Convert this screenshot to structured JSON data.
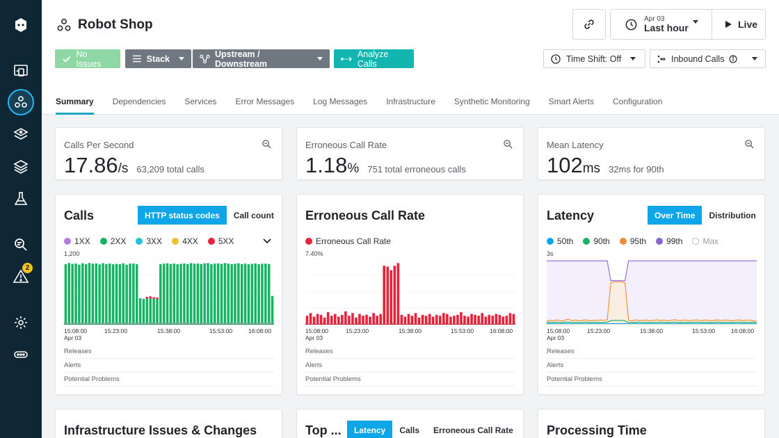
{
  "sidebar": {
    "icons": [
      "app-logo-icon",
      "websites-icon",
      "applications-icon",
      "platforms-icon",
      "infrastructure-icon",
      "tests-icon",
      "analyze-icon",
      "events-icon",
      "settings-icon",
      "more-icon"
    ],
    "events_badge": "2"
  },
  "header": {
    "title": "Robot Shop",
    "time_date": "Apr 03",
    "time_range": "Last hour",
    "live_label": "Live"
  },
  "toolbar": {
    "no_issues": "No Issues",
    "stack": "Stack",
    "upstream": "Upstream / Downstream",
    "analyze": "Analyze Calls",
    "time_shift": "Time Shift: Off",
    "inbound": "Inbound Calls"
  },
  "tabs": [
    "Summary",
    "Dependencies",
    "Services",
    "Error Messages",
    "Log Messages",
    "Infrastructure",
    "Synthetic Monitoring",
    "Smart Alerts",
    "Configuration"
  ],
  "stats": {
    "calls": {
      "label": "Calls Per Second",
      "value": "17.86",
      "unit": "/s",
      "sub": "63,209 total calls"
    },
    "errors": {
      "label": "Erroneous Call Rate",
      "value": "1.18",
      "unit": "%",
      "sub": "751 total erroneous calls"
    },
    "latency": {
      "label": "Mean Latency",
      "value": "102",
      "unit": "ms",
      "sub": "32ms for 90th"
    }
  },
  "calls_chart": {
    "title": "Calls",
    "toggle": [
      "HTTP status codes",
      "Call count"
    ],
    "legend": [
      "1XX",
      "2XX",
      "3XX",
      "4XX",
      "5XX"
    ],
    "ymax": "1,200",
    "xticks": [
      "15:08:00",
      "15:23:00",
      "15:38:00",
      "15:53:00",
      "16:08:00"
    ],
    "xdate": "Apr 03"
  },
  "error_chart": {
    "title": "Erroneous Call Rate",
    "legend": [
      "Erroneous Call Rate"
    ],
    "ymax": "7.40%",
    "xticks": [
      "15:08:00",
      "15:23:00",
      "15:38:00",
      "15:53:00",
      "16:08:00"
    ],
    "xdate": "Apr 03"
  },
  "latency_chart": {
    "title": "Latency",
    "toggle": [
      "Over Time",
      "Distribution"
    ],
    "legend": [
      "50th",
      "90th",
      "95th",
      "99th",
      "Max"
    ],
    "ymax": "3s",
    "xticks": [
      "15:08:00",
      "15:23:00",
      "15:38:00",
      "15:53:00",
      "16:08:00"
    ],
    "xdate": "Apr 03"
  },
  "rows": [
    "Releases",
    "Alerts",
    "Potential Problems"
  ],
  "bottom": {
    "infra_title": "Infrastructure Issues & Changes",
    "top_title": "Top ...",
    "top_tabs": [
      "Latency",
      "Calls",
      "Erroneous Call Rate"
    ],
    "processing_title": "Processing Time"
  },
  "colors": {
    "1XX": "#b57be3",
    "2XX": "#16b364",
    "3XX": "#22c3d6",
    "4XX": "#f2c037",
    "5XX": "#e5243b",
    "p50": "#0ea5e9",
    "p90": "#16b364",
    "p95": "#f08c2e",
    "p99": "#8a63d2"
  },
  "chart_data": [
    {
      "type": "bar",
      "title": "Calls",
      "ylim": [
        0,
        1200
      ],
      "x_start": "15:08:00",
      "x_end": "16:08:00",
      "series": [
        {
          "name": "2XX",
          "values": [
            1100,
            1120,
            1105,
            1110,
            1090,
            1115,
            1100,
            1120,
            1108,
            1112,
            1095,
            1118,
            1102,
            1110,
            1098,
            1105,
            1100,
            1115,
            1090,
            1108,
            1110,
            1100,
            480,
            470,
            475,
            480,
            470,
            465,
            1100,
            1108,
            1115,
            1102,
            1110,
            1098,
            1105,
            1112,
            1100,
            1118,
            1108,
            1110,
            1102,
            1115,
            1120,
            1100,
            1108,
            1112,
            1105,
            1118,
            1110,
            1100,
            1108,
            1115,
            1102,
            1110,
            1098,
            1105,
            1112,
            1100,
            1108,
            1110,
            1102,
            520
          ]
        },
        {
          "name": "5XX",
          "values": [
            0,
            0,
            0,
            0,
            0,
            0,
            0,
            0,
            0,
            0,
            0,
            0,
            0,
            0,
            0,
            0,
            0,
            0,
            0,
            0,
            0,
            0,
            0,
            0,
            30,
            35,
            30,
            28,
            0,
            0,
            0,
            0,
            0,
            0,
            0,
            0,
            0,
            0,
            0,
            0,
            0,
            0,
            0,
            0,
            0,
            0,
            0,
            0,
            0,
            0,
            0,
            0,
            0,
            0,
            0,
            0,
            0,
            0,
            0,
            0,
            0,
            0
          ]
        }
      ]
    },
    {
      "type": "bar",
      "title": "Erroneous Call Rate",
      "ylim": [
        0,
        7.4
      ],
      "x_start": "15:08:00",
      "x_end": "16:08:00",
      "series": [
        {
          "name": "Erroneous Call Rate",
          "values": [
            1.0,
            1.3,
            0.9,
            1.2,
            1.1,
            0.8,
            1.4,
            1.0,
            1.2,
            0.9,
            1.1,
            1.5,
            1.0,
            1.3,
            0.8,
            1.2,
            1.0,
            1.1,
            0.9,
            1.3,
            1.0,
            1.2,
            6.6,
            6.5,
            6.1,
            6.6,
            6.9,
            1.1,
            0.9,
            1.2,
            1.0,
            1.3,
            0.8,
            1.1,
            1.0,
            1.2,
            0.9,
            1.1,
            1.0,
            1.3,
            1.2,
            0.9,
            1.0,
            1.1,
            1.4,
            1.0,
            0.9,
            1.2,
            1.1,
            1.0,
            1.3,
            0.9,
            1.1,
            1.0,
            1.2,
            1.1,
            0.9,
            1.0,
            1.3,
            1.2
          ]
        }
      ]
    },
    {
      "type": "line",
      "title": "Latency",
      "ylim": [
        0,
        3
      ],
      "x_start": "15:08:00",
      "x_end": "16:08:00",
      "series": [
        {
          "name": "Max",
          "values": [
            2.9,
            2.9,
            2.9,
            2.9,
            2.9,
            2.9,
            2.9,
            2.9,
            2.9,
            2.9,
            2.9,
            2.9,
            2.9,
            2.9,
            2.9,
            2.9,
            2.9,
            2.9,
            2.0,
            2.0,
            2.0,
            2.0,
            2.0,
            2.9,
            2.9,
            2.9,
            2.9,
            2.9,
            2.9,
            2.9,
            2.9,
            2.9,
            2.9,
            2.9,
            2.9,
            2.9,
            2.9,
            2.9,
            2.9,
            2.9,
            2.9,
            2.9,
            2.9,
            2.9,
            2.9,
            2.9,
            2.9,
            2.9,
            2.9,
            2.9,
            2.9,
            2.9,
            2.9,
            2.9,
            2.9,
            2.9,
            2.9,
            2.9,
            2.9,
            2.9
          ]
        },
        {
          "name": "95th",
          "values": [
            0.15,
            0.2,
            0.18,
            0.22,
            0.17,
            0.2,
            0.25,
            0.19,
            0.21,
            0.18,
            0.2,
            0.22,
            0.18,
            0.2,
            0.19,
            0.21,
            0.2,
            0.22,
            1.9,
            1.95,
            1.95,
            1.95,
            1.9,
            0.2,
            0.18,
            0.22,
            0.19,
            0.2,
            0.21,
            0.18,
            0.2,
            0.22,
            0.19,
            0.21,
            0.18,
            0.2,
            0.23,
            0.19,
            0.2,
            0.21,
            0.18,
            0.2,
            0.22,
            0.19,
            0.2,
            0.21,
            0.18,
            0.2,
            0.22,
            0.19,
            0.21,
            0.2,
            0.18,
            0.2,
            0.22,
            0.19,
            0.2,
            0.21,
            0.18,
            0.15
          ]
        },
        {
          "name": "90th",
          "values": [
            0.1,
            0.11,
            0.1,
            0.12,
            0.1,
            0.11,
            0.12,
            0.1,
            0.11,
            0.1,
            0.11,
            0.12,
            0.1,
            0.11,
            0.1,
            0.11,
            0.1,
            0.12,
            0.18,
            0.2,
            0.19,
            0.2,
            0.18,
            0.1,
            0.11,
            0.1,
            0.12,
            0.1,
            0.11,
            0.1,
            0.11,
            0.1,
            0.12,
            0.1,
            0.11,
            0.1,
            0.12,
            0.1,
            0.11,
            0.1,
            0.11,
            0.1,
            0.12,
            0.1,
            0.11,
            0.1,
            0.11,
            0.1,
            0.12,
            0.1,
            0.11,
            0.1,
            0.11,
            0.1,
            0.12,
            0.1,
            0.11,
            0.1,
            0.11,
            0.1
          ]
        },
        {
          "name": "50th",
          "values": [
            0.05,
            0.05,
            0.05,
            0.05,
            0.05,
            0.05,
            0.05,
            0.05,
            0.05,
            0.05,
            0.05,
            0.05,
            0.05,
            0.05,
            0.05,
            0.05,
            0.05,
            0.05,
            0.05,
            0.05,
            0.05,
            0.05,
            0.05,
            0.05,
            0.05,
            0.05,
            0.05,
            0.05,
            0.05,
            0.05,
            0.05,
            0.05,
            0.05,
            0.05,
            0.05,
            0.05,
            0.05,
            0.05,
            0.05,
            0.05,
            0.05,
            0.05,
            0.05,
            0.05,
            0.05,
            0.05,
            0.05,
            0.05,
            0.05,
            0.05,
            0.05,
            0.05,
            0.05,
            0.05,
            0.05,
            0.05,
            0.05,
            0.05,
            0.05,
            0.05
          ]
        }
      ]
    }
  ]
}
